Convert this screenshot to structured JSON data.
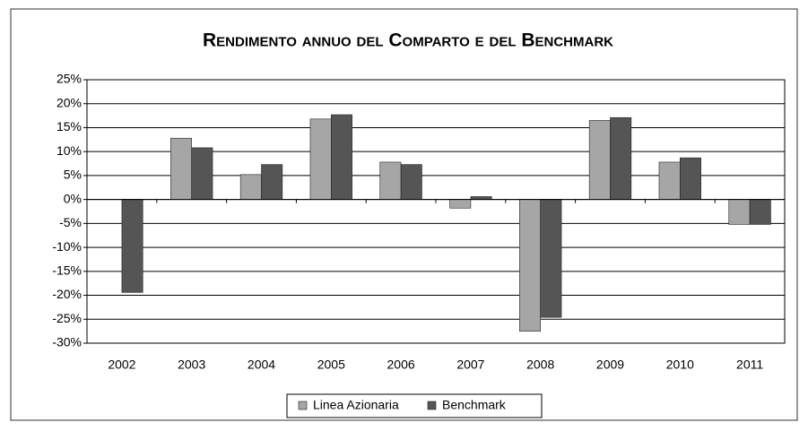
{
  "chart_data": {
    "type": "bar",
    "title": "Rendimento annuo del Comparto e del Benchmark",
    "categories": [
      "2002",
      "2003",
      "2004",
      "2005",
      "2006",
      "2007",
      "2008",
      "2009",
      "2010",
      "2011"
    ],
    "series": [
      {
        "name": "Linea Azionaria",
        "color": "#a6a6a6",
        "values": [
          null,
          12.8,
          5.2,
          16.8,
          7.8,
          -1.8,
          -27.5,
          16.5,
          7.8,
          -5.2
        ]
      },
      {
        "name": "Benchmark",
        "color": "#555555",
        "values": [
          -19.4,
          10.8,
          7.3,
          17.7,
          7.3,
          0.6,
          -24.6,
          17.1,
          8.7,
          -5.2
        ]
      }
    ],
    "ylim": [
      -30,
      25
    ],
    "yticks": [
      {
        "value": -30,
        "label": "-30%"
      },
      {
        "value": -25,
        "label": "-25%"
      },
      {
        "value": -20,
        "label": "-20%"
      },
      {
        "value": -15,
        "label": "-15%"
      },
      {
        "value": -10,
        "label": "-10%"
      },
      {
        "value": -5,
        "label": "-5%"
      },
      {
        "value": 0,
        "label": "0%"
      },
      {
        "value": 5,
        "label": "5%"
      },
      {
        "value": 10,
        "label": "10%"
      },
      {
        "value": 15,
        "label": "15%"
      },
      {
        "value": 20,
        "label": "20%"
      },
      {
        "value": 25,
        "label": "25%"
      }
    ],
    "grid": true,
    "legend": "bottom"
  }
}
